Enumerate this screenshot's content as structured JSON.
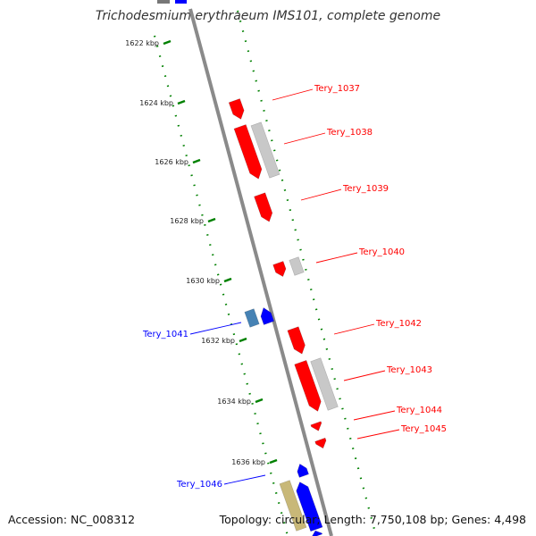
{
  "header": {
    "title": "Trichodesmium erythraeum IMS101, complete genome"
  },
  "footer": {
    "accession": "Accession: NC_008312",
    "summary": "Topology: circular; Length: 7,750,108 bp; Genes: 4,498"
  },
  "colors": {
    "forward_gene": "#ff0000",
    "reverse_gene": "#0000ff",
    "tick": "#008000",
    "backbone": "#8a8a8a",
    "other_feature": "#c8c8c8",
    "rna_feature": "#c8b878",
    "reverse_alt": "#4682b4"
  },
  "scale": {
    "ticks": [
      "1622 kbp",
      "1624 kbp",
      "1626 kbp",
      "1628 kbp",
      "1630 kbp",
      "1632 kbp",
      "1634 kbp",
      "1636 kbp"
    ]
  },
  "genes": {
    "forward": [
      "Tery_1037",
      "Tery_1038",
      "Tery_1039",
      "Tery_1040",
      "Tery_1042",
      "Tery_1043",
      "Tery_1044",
      "Tery_1045"
    ],
    "reverse": [
      "Tery_1041",
      "Tery_1046"
    ]
  }
}
